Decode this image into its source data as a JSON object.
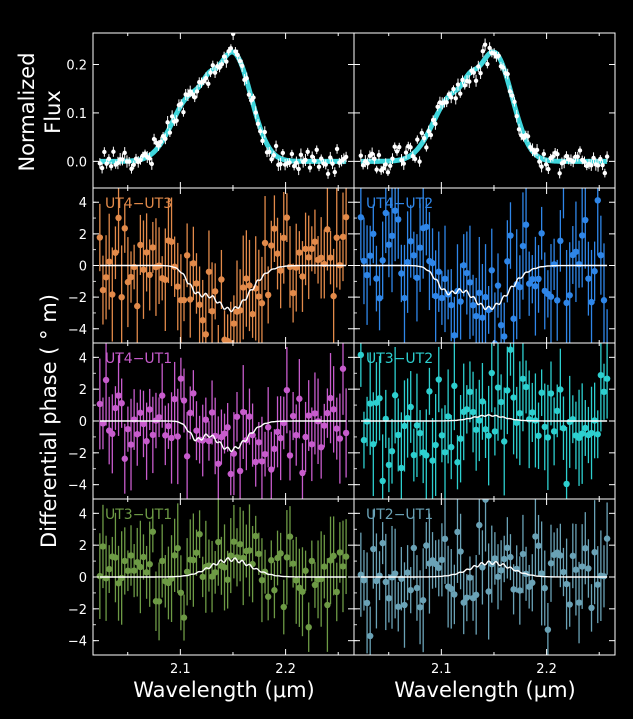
{
  "figure": {
    "flux_ylabel_line1": "Normalized",
    "flux_ylabel_line2": "Flux",
    "phase_ylabel": "Differential phase ( ° m)",
    "xlabel_left": "Wavelength (μm)",
    "xlabel_right": "Wavelength (μm)"
  },
  "colors": {
    "background": "#000000",
    "frame": "#ffffff",
    "flux_data": "#ffffff",
    "flux_model": "#3fd6dc",
    "model_line": "#ffffff"
  },
  "chart_data": [
    {
      "type": "scatter",
      "panel": "flux-left",
      "ylabel": "Normalized Flux",
      "xlim": [
        2.017,
        2.265
      ],
      "ylim": [
        -0.055,
        0.265
      ],
      "yticks": [
        0.0,
        0.1,
        0.2
      ],
      "ytick_labels": [
        "0.0",
        "0.1",
        "0.2"
      ],
      "data_color": "#ffffff",
      "model_color": "#3fd6dc",
      "line_profile": {
        "shape": "emission",
        "continuum": 0.0,
        "components": [
          {
            "center": 2.11,
            "sigma": 0.018,
            "amp": 0.13
          },
          {
            "center": 2.151,
            "sigma": 0.0165,
            "amp": 0.215
          },
          {
            "center": 2.127,
            "sigma": 0.006,
            "amp": 0.025
          }
        ],
        "x_range": [
          2.0235,
          2.2575
        ]
      },
      "error_bar": 0.022,
      "scatter": 0.012
    },
    {
      "type": "scatter",
      "panel": "flux-right",
      "xlim": [
        2.017,
        2.265
      ],
      "ylim": [
        -0.055,
        0.265
      ],
      "yticks": [
        0.0,
        0.1,
        0.2
      ],
      "data_color": "#ffffff",
      "model_color": "#3fd6dc",
      "line_profile": {
        "shape": "emission",
        "continuum": 0.0,
        "components": [
          {
            "center": 2.11,
            "sigma": 0.018,
            "amp": 0.13
          },
          {
            "center": 2.151,
            "sigma": 0.0165,
            "amp": 0.215
          },
          {
            "center": 2.127,
            "sigma": 0.006,
            "amp": 0.025
          }
        ],
        "x_range": [
          2.0235,
          2.2575
        ]
      },
      "error_bar": 0.022,
      "scatter": 0.012
    },
    {
      "type": "scatter",
      "panel": "phase-1-left",
      "label": "UT4−UT3",
      "color": "#e28a4a",
      "xlim": [
        2.017,
        2.265
      ],
      "ylim": [
        -4.9,
        4.9
      ],
      "yticks": [
        -4,
        -2,
        0,
        2,
        4
      ],
      "ytick_labels": [
        "−4",
        "−2",
        "0",
        "2",
        "4"
      ],
      "model": {
        "components": [
          {
            "center": 2.148,
            "sigma": 0.018,
            "amp": -2.8
          },
          {
            "center": 2.115,
            "sigma": 0.009,
            "amp": -1.2
          }
        ]
      },
      "error_bar": 2.2,
      "scatter": 1.5
    },
    {
      "type": "scatter",
      "panel": "phase-1-right",
      "label": "UT4−UT2",
      "color": "#2f86e8",
      "xlim": [
        2.017,
        2.265
      ],
      "ylim": [
        -4.9,
        4.9
      ],
      "yticks": [
        -4,
        -2,
        0,
        2,
        4
      ],
      "model": {
        "components": [
          {
            "center": 2.145,
            "sigma": 0.019,
            "amp": -2.7
          },
          {
            "center": 2.105,
            "sigma": 0.01,
            "amp": -1.4
          }
        ]
      },
      "error_bar": 2.4,
      "scatter": 1.7
    },
    {
      "type": "scatter",
      "panel": "phase-2-left",
      "label": "UT4−UT1",
      "color": "#c75ccc",
      "xlim": [
        2.017,
        2.265
      ],
      "ylim": [
        -4.9,
        4.9
      ],
      "yticks": [
        -4,
        -2,
        0,
        2,
        4
      ],
      "ytick_labels": [
        "−4",
        "−2",
        "0",
        "2",
        "4"
      ],
      "model": {
        "components": [
          {
            "center": 2.148,
            "sigma": 0.015,
            "amp": -1.8
          },
          {
            "center": 2.115,
            "sigma": 0.007,
            "amp": -1.0
          }
        ]
      },
      "error_bar": 2.0,
      "scatter": 1.4
    },
    {
      "type": "scatter",
      "panel": "phase-2-right",
      "label": "UT3−UT2",
      "color": "#2dcfcf",
      "xlim": [
        2.017,
        2.265
      ],
      "ylim": [
        -4.9,
        4.9
      ],
      "yticks": [
        -4,
        -2,
        0,
        2,
        4
      ],
      "model": {
        "components": [
          {
            "center": 2.145,
            "sigma": 0.015,
            "amp": 0.35
          }
        ]
      },
      "error_bar": 2.4,
      "scatter": 1.6
    },
    {
      "type": "scatter",
      "panel": "phase-3-left",
      "label": "UT3−UT1",
      "color": "#6d9a45",
      "xlim": [
        2.017,
        2.265
      ],
      "ylim": [
        -4.9,
        4.9
      ],
      "yticks": [
        -4,
        -2,
        0,
        2,
        4
      ],
      "ytick_labels": [
        "−4",
        "−2",
        "0",
        "2",
        "4"
      ],
      "xticks": [
        2.1,
        2.2
      ],
      "xtick_labels": [
        "2.1",
        "2.2"
      ],
      "model": {
        "components": [
          {
            "center": 2.148,
            "sigma": 0.019,
            "amp": 1.1
          }
        ]
      },
      "error_bar": 2.0,
      "scatter": 1.3
    },
    {
      "type": "scatter",
      "panel": "phase-3-right",
      "label": "UT2−UT1",
      "color": "#6aa2b6",
      "xlim": [
        2.017,
        2.265
      ],
      "ylim": [
        -4.9,
        4.9
      ],
      "yticks": [
        -4,
        -2,
        0,
        2,
        4
      ],
      "xticks": [
        2.1,
        2.2
      ],
      "xtick_labels": [
        "2.1",
        "2.2"
      ],
      "model": {
        "components": [
          {
            "center": 2.147,
            "sigma": 0.019,
            "amp": 0.9
          }
        ]
      },
      "error_bar": 2.2,
      "scatter": 1.6
    }
  ]
}
